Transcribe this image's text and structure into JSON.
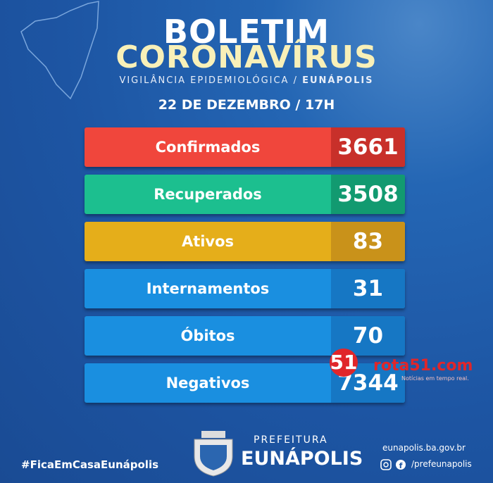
{
  "header": {
    "title_line1": "BOLETIM",
    "title_line2": "CORONAVÍRUS",
    "subtitle": "VIGILÂNCIA EPIDEMIOLÓGICA /",
    "subtitle_place": "EUNÁPOLIS",
    "date": "22 DE DEZEMBRO / 17H"
  },
  "rows": [
    {
      "label": "Confirmados",
      "value": "3661"
    },
    {
      "label": "Recuperados",
      "value": "3508"
    },
    {
      "label": "Ativos",
      "value": "83"
    },
    {
      "label": "Internamentos",
      "value": "31"
    },
    {
      "label": "Óbitos",
      "value": "70"
    },
    {
      "label": "Negativos",
      "value": "7344"
    }
  ],
  "footer": {
    "hashtag": "#FicaEmCasaEunápolis",
    "org_line1": "PREFEITURA",
    "org_line2": "EUNÁPOLIS",
    "website": "eunapolis.ba.gov.br",
    "social": "/prefeunapolis"
  },
  "watermark": {
    "number": "51",
    "site": "rota51.com",
    "tagline": "Notícias em tempo real."
  }
}
